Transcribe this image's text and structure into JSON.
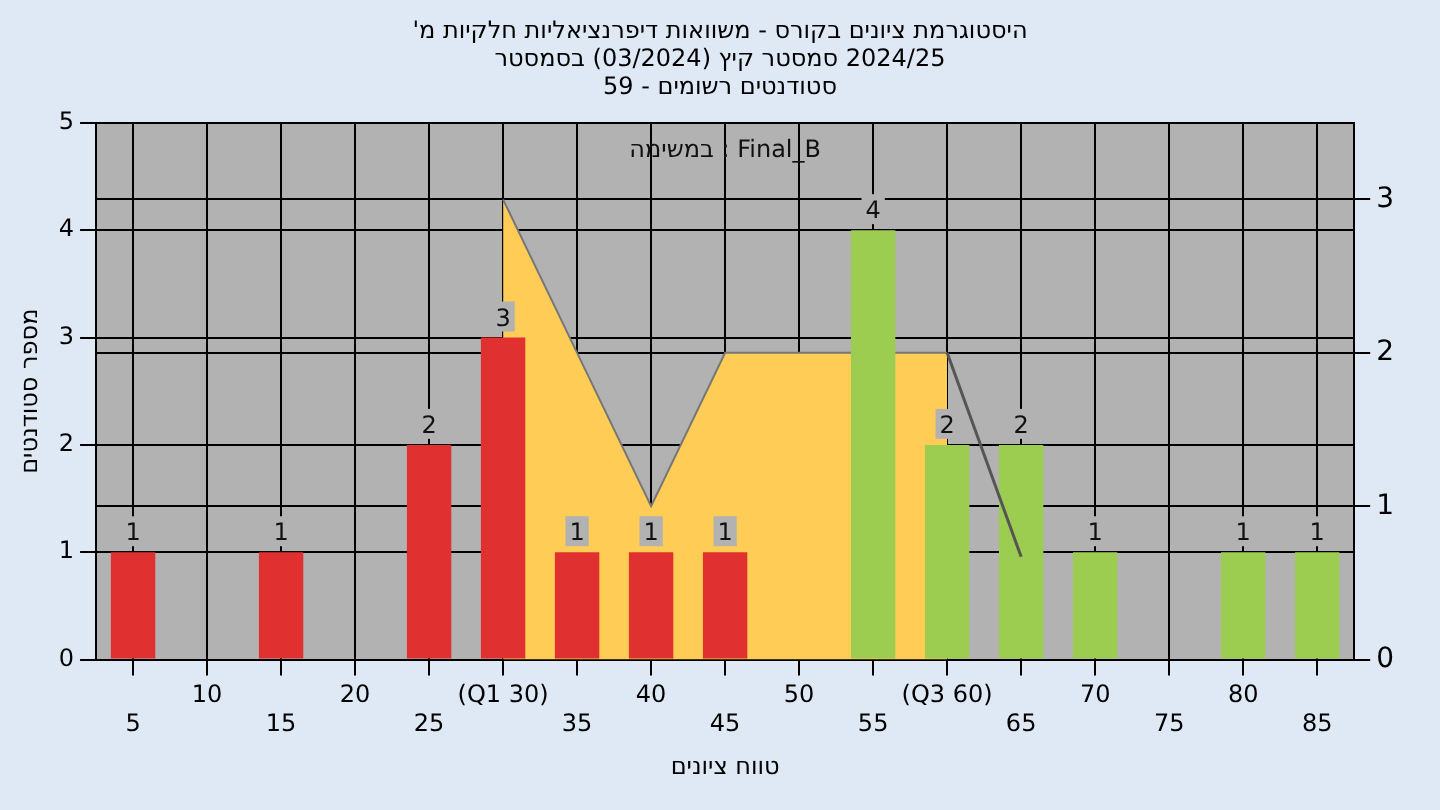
{
  "chart_data": {
    "type": "bar",
    "title": "היסטוגרמת ציונים בקורס - משוואות דיפרנציאליות חלקיות מ'",
    "subtitle": [
      "2024/25 סמסטר קיץ (03/2024) בסמסטר",
      "סטודנטים רשומים - 59"
    ],
    "xlabel": "טווח ציונים",
    "ylabel": "מספר סטודנטים",
    "annotations": [
      "במשימה : Final_B"
    ],
    "categories": [
      "5",
      "10",
      "15",
      "20",
      "25",
      "(Q1 30)",
      "35",
      "40",
      "45",
      "50",
      "55",
      "(Q3 60)",
      "65",
      "70",
      "75",
      "80",
      "85"
    ],
    "series": [
      {
        "type": "area",
        "axis": "y2",
        "color": "#ffcc55",
        "values": [
          null,
          null,
          null,
          null,
          null,
          3,
          2,
          1,
          2,
          2,
          2,
          2,
          null,
          null,
          null,
          null,
          null
        ]
      },
      {
        "type": "line",
        "axis": "y2",
        "color": "#555555",
        "values": [
          null,
          null,
          null,
          null,
          null,
          null,
          null,
          null,
          null,
          null,
          null,
          2,
          0.67,
          null,
          null,
          null,
          null
        ]
      },
      {
        "colors": [
          "#e03030",
          "#e03030",
          "#e03030",
          "#e03030",
          "#e03030",
          "#e03030",
          "#e03030",
          "#e03030",
          "#e03030",
          "#9ccc50",
          "#9ccc50",
          "#9ccc50",
          "#9ccc50",
          "#9ccc50",
          "#9ccc50",
          "#9ccc50",
          "#9ccc50"
        ],
        "values": [
          1,
          0,
          1,
          0,
          2,
          3,
          1,
          1,
          1,
          0,
          4,
          2,
          2,
          1,
          0,
          1,
          1
        ],
        "value_labels": [
          "1",
          null,
          "1",
          null,
          "2",
          "3",
          "1",
          "1",
          "1",
          null,
          "4",
          "2",
          "2",
          "1",
          null,
          "1",
          "1"
        ]
      }
    ],
    "ylim": [
      0,
      5
    ],
    "yticks": [
      0,
      1,
      2,
      3,
      4,
      5
    ],
    "y2lim": [
      0,
      3.5
    ],
    "y2ticks": [
      0,
      1,
      2,
      3
    ],
    "grid": true,
    "legend": false
  }
}
